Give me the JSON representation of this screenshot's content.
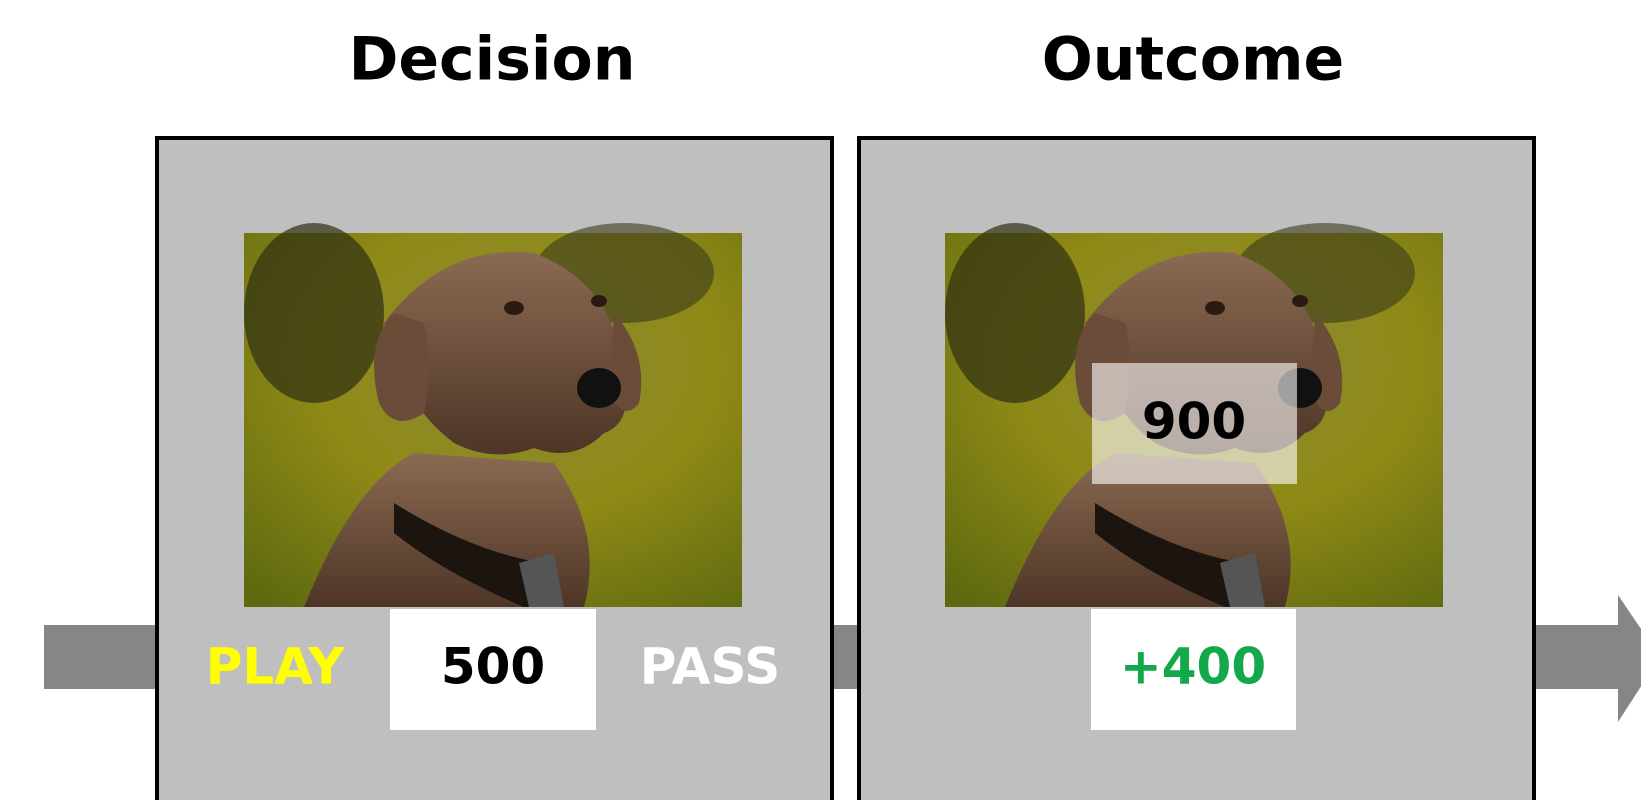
{
  "panels": [
    {
      "title": "Decision",
      "left_option": "PLAY",
      "offer": "500",
      "right_option": "PASS"
    },
    {
      "title": "Outcome",
      "reveal": "900",
      "result": "+400"
    }
  ]
}
